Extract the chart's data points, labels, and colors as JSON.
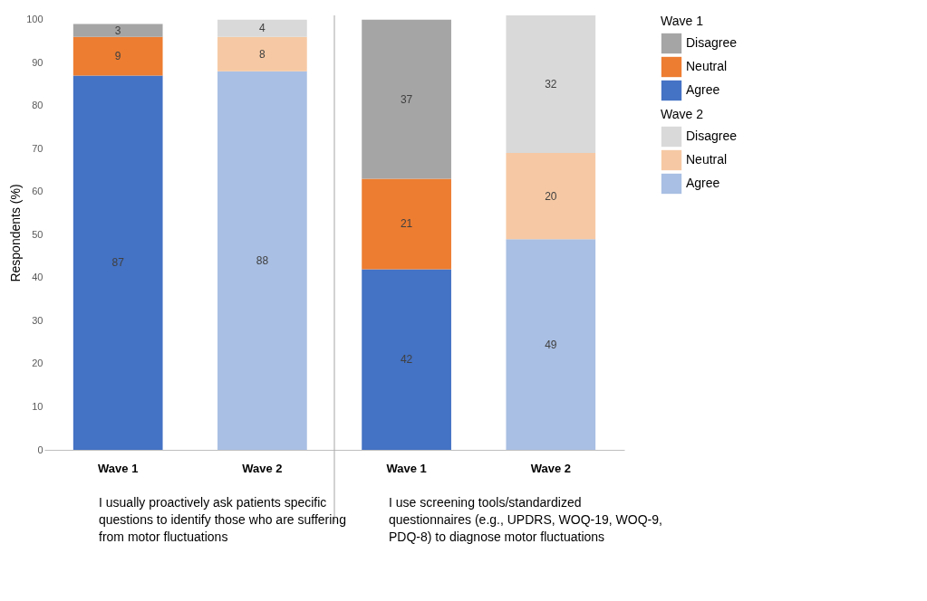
{
  "chart_data": {
    "type": "bar",
    "stacked": true,
    "categories": [
      "Wave 1",
      "Wave 2",
      "Wave 1",
      "Wave 2"
    ],
    "ylabel": "Respondents (%)",
    "ylim": [
      0,
      101
    ],
    "yticks": [
      0,
      10,
      20,
      30,
      40,
      50,
      60,
      70,
      80,
      90,
      100
    ],
    "legend_title": [
      "Wave 1",
      "Wave 2"
    ],
    "legend": "right",
    "grid": false,
    "data_labels": true,
    "series": [
      {
        "name": "Agree",
        "color": "#4472c4",
        "values": [
          87,
          null,
          42,
          null
        ]
      },
      {
        "name": "Neutral",
        "color": "#ed7d31",
        "values": [
          9,
          null,
          21,
          null
        ]
      },
      {
        "name": "Disagree",
        "color": "#a5a5a5",
        "values": [
          3,
          null,
          37,
          null
        ]
      },
      {
        "name": "Agree",
        "color": "#a9bfe3",
        "values": [
          null,
          88,
          null,
          49
        ]
      },
      {
        "name": "Neutral",
        "color": "#f6c9a4",
        "values": [
          null,
          8,
          null,
          20
        ]
      },
      {
        "name": "Disagree",
        "color": "#d9d9d9",
        "values": [
          null,
          4,
          null,
          32
        ]
      }
    ],
    "annotations": [
      "I usually proactively ask patients specific questions to identify those who are suffering from motor fluctuations",
      "I use screening tools/standardized questionnaires (e.g., UPDRS, WOQ-19, WOQ-9, PDQ-8) to diagnose motor fluctuations"
    ]
  }
}
